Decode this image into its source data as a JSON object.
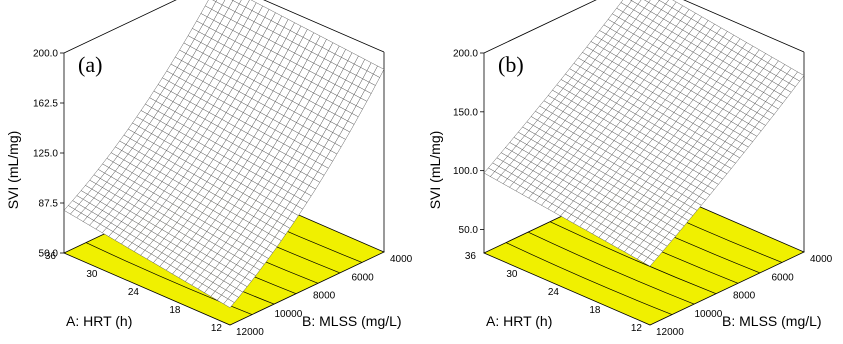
{
  "chart_data": [
    {
      "type": "surface",
      "panel_label": "(a)",
      "zlabel": "SVI (mL/mg)",
      "xlabel": "A: HRT (h)",
      "ylabel": "B: MLSS (mg/L)",
      "x_ticks": [
        "12",
        "18",
        "24",
        "30",
        "36"
      ],
      "y_ticks": [
        "4000",
        "6000",
        "8000",
        "10000",
        "12000"
      ],
      "z_ticks": [
        "50.0",
        "87.5",
        "125.0",
        "162.5",
        "200.0"
      ],
      "xlim": [
        12,
        36
      ],
      "ylim": [
        4000,
        12000
      ],
      "zlim": [
        50,
        200
      ],
      "floor_color": "#f0f000",
      "corner_values": {
        "hrt12_mlss4000": 187,
        "hrt12_mlss12000": 63,
        "hrt36_mlss4000": 198,
        "hrt36_mlss12000": 82
      },
      "curvature": 0.35
    },
    {
      "type": "surface",
      "panel_label": "(b)",
      "zlabel": "SVI (mL/mg)",
      "xlabel": "A: HRT (h)",
      "ylabel": "B: MLSS (mg/L)",
      "x_ticks": [
        "12",
        "18",
        "24",
        "30",
        "36"
      ],
      "y_ticks": [
        "4000",
        "6000",
        "8000",
        "10000",
        "12000"
      ],
      "z_ticks": [
        "50.0",
        "100.0",
        "150.0",
        "200.0"
      ],
      "xlim": [
        12,
        36
      ],
      "ylim": [
        4000,
        12000
      ],
      "zlim": [
        30,
        200
      ],
      "floor_color": "#f0f000",
      "corner_values": {
        "hrt12_mlss4000": 180,
        "hrt12_mlss12000": 80,
        "hrt36_mlss4000": 200,
        "hrt36_mlss12000": 98
      },
      "curvature": 0.1
    }
  ]
}
